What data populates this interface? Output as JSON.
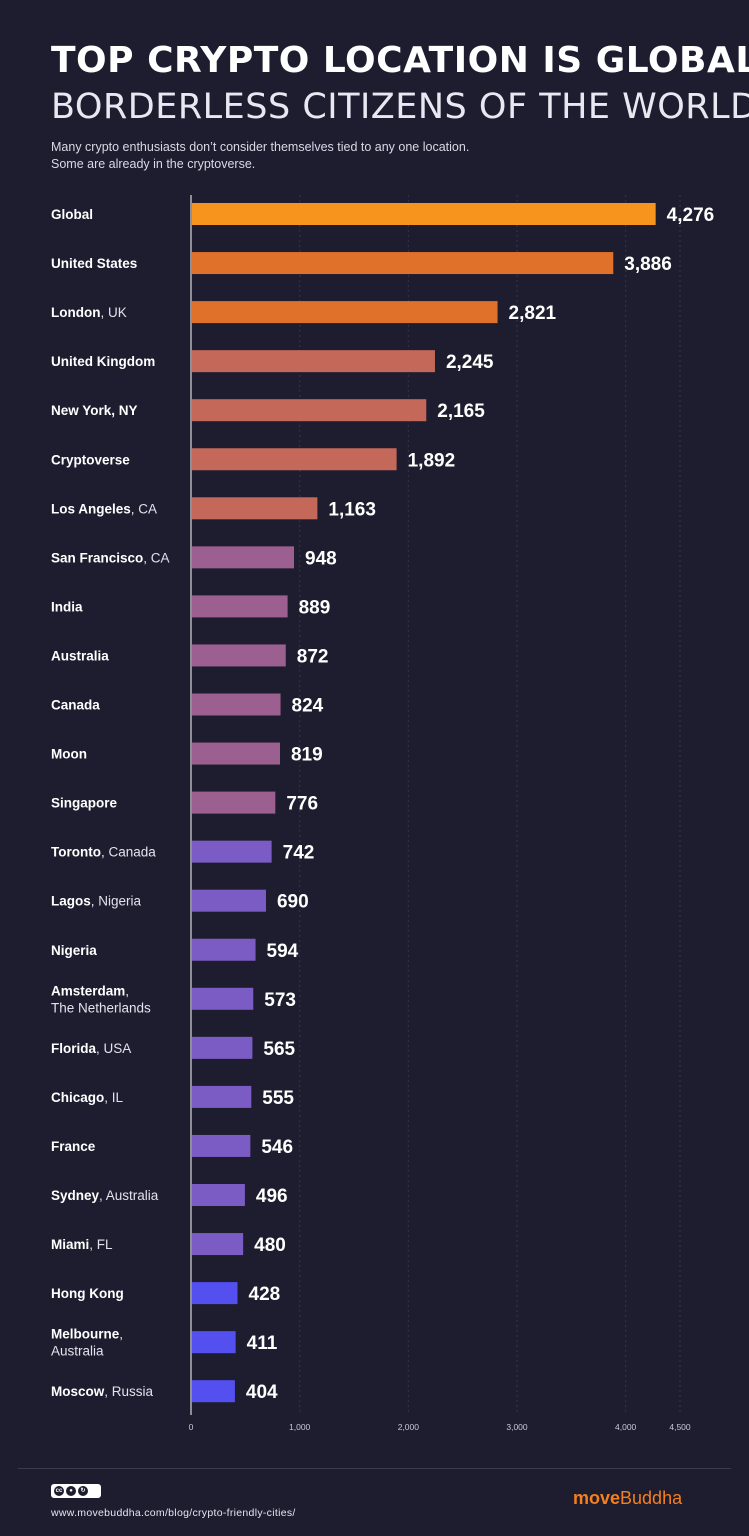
{
  "header": {
    "title": "TOP CRYPTO LOCATION IS GLOBAL:",
    "subtitle": "BORDERLESS CITIZENS OF THE WORLD",
    "intro_line1": "Many crypto enthusiasts don’t consider themselves tied to any one location.",
    "intro_line2": "Some are already in the cryptoverse."
  },
  "chart_data": {
    "type": "bar",
    "orientation": "horizontal",
    "categories": [
      "Global",
      "United States",
      "London, UK",
      "United Kingdom",
      "New York, NY",
      "Cryptoverse",
      "Los Angeles, CA",
      "San Francisco, CA",
      "India",
      "Australia",
      "Canada",
      "Moon",
      "Singapore",
      "Toronto, Canada",
      "Lagos, Nigeria",
      "Nigeria",
      "Amsterdam, The Netherlands",
      "Florida, USA",
      "Chicago, IL",
      "France",
      "Sydney, Australia",
      "Miami, FL",
      "Hong Kong",
      "Melbourne, Australia",
      "Moscow, Russia"
    ],
    "category_labels": [
      {
        "lines": [
          {
            "bold": "Global",
            "rest": ""
          }
        ]
      },
      {
        "lines": [
          {
            "bold": "United States",
            "rest": ""
          }
        ]
      },
      {
        "lines": [
          {
            "bold": "London",
            "rest": ", UK"
          }
        ]
      },
      {
        "lines": [
          {
            "bold": "United Kingdom",
            "rest": ""
          }
        ]
      },
      {
        "lines": [
          {
            "bold": "New York, NY",
            "rest": ""
          }
        ]
      },
      {
        "lines": [
          {
            "bold": "Cryptoverse",
            "rest": ""
          }
        ]
      },
      {
        "lines": [
          {
            "bold": "Los Angeles",
            "rest": ", CA"
          }
        ]
      },
      {
        "lines": [
          {
            "bold": "San Francisco",
            "rest": ", CA"
          }
        ]
      },
      {
        "lines": [
          {
            "bold": "India",
            "rest": ""
          }
        ]
      },
      {
        "lines": [
          {
            "bold": "Australia",
            "rest": ""
          }
        ]
      },
      {
        "lines": [
          {
            "bold": "Canada",
            "rest": ""
          }
        ]
      },
      {
        "lines": [
          {
            "bold": "Moon",
            "rest": ""
          }
        ]
      },
      {
        "lines": [
          {
            "bold": "Singapore",
            "rest": ""
          }
        ]
      },
      {
        "lines": [
          {
            "bold": "Toronto",
            "rest": ", Canada"
          }
        ]
      },
      {
        "lines": [
          {
            "bold": "Lagos",
            "rest": ", Nigeria"
          }
        ]
      },
      {
        "lines": [
          {
            "bold": "Nigeria",
            "rest": ""
          }
        ]
      },
      {
        "lines": [
          {
            "bold": "Amsterdam",
            "rest": ","
          },
          {
            "bold": "",
            "rest": "The Netherlands"
          }
        ]
      },
      {
        "lines": [
          {
            "bold": "Florida",
            "rest": ", USA"
          }
        ]
      },
      {
        "lines": [
          {
            "bold": "Chicago",
            "rest": ", IL"
          }
        ]
      },
      {
        "lines": [
          {
            "bold": "France",
            "rest": ""
          }
        ]
      },
      {
        "lines": [
          {
            "bold": "Sydney",
            "rest": ", Australia"
          }
        ]
      },
      {
        "lines": [
          {
            "bold": "Miami",
            "rest": ", FL"
          }
        ]
      },
      {
        "lines": [
          {
            "bold": "Hong Kong",
            "rest": ""
          }
        ]
      },
      {
        "lines": [
          {
            "bold": "Melbourne",
            "rest": ","
          },
          {
            "bold": "",
            "rest": "Australia"
          }
        ]
      },
      {
        "lines": [
          {
            "bold": "Moscow",
            "rest": ", Russia"
          }
        ]
      }
    ],
    "values": [
      4276,
      3886,
      2821,
      2245,
      2165,
      1892,
      1163,
      948,
      889,
      872,
      824,
      819,
      776,
      742,
      690,
      594,
      573,
      565,
      555,
      546,
      496,
      480,
      428,
      411,
      404
    ],
    "value_labels": [
      "4,276",
      "3,886",
      "2,821",
      "2,245",
      "2,165",
      "1,892",
      "1,163",
      "948",
      "889",
      "872",
      "824",
      "819",
      "776",
      "742",
      "690",
      "594",
      "573",
      "565",
      "555",
      "546",
      "496",
      "480",
      "428",
      "411",
      "404"
    ],
    "bar_colors": [
      "#f7941d",
      "#e0712a",
      "#e0712a",
      "#c4695a",
      "#c4695a",
      "#c4695a",
      "#c4695a",
      "#9c6090",
      "#9c6090",
      "#9c6090",
      "#9c6090",
      "#9c6090",
      "#9c6090",
      "#7b5cc4",
      "#7b5cc4",
      "#7b5cc4",
      "#7b5cc4",
      "#7b5cc4",
      "#7b5cc4",
      "#7b5cc4",
      "#7b5cc4",
      "#7b5cc4",
      "#5450f0",
      "#5450f0",
      "#5450f0"
    ],
    "x_ticks": [
      0,
      1000,
      2000,
      3000,
      4000,
      4500
    ],
    "x_tick_labels": [
      "0",
      "1,000",
      "2,000",
      "3,000",
      "4,000",
      "4,500"
    ],
    "xlim": [
      0,
      4500
    ],
    "grid": true,
    "legend": "none",
    "title": "TOP CRYPTO LOCATION IS GLOBAL:",
    "subtitle": "BORDERLESS CITIZENS OF THE WORLD",
    "xlabel": "",
    "ylabel": ""
  },
  "footer": {
    "license_text": "cc",
    "source": "www.movebuddha.com/blog/crypto-friendly-cities/",
    "brand_a": "move",
    "brand_b": "Buddha",
    "brand_color": "#f47f1e"
  }
}
